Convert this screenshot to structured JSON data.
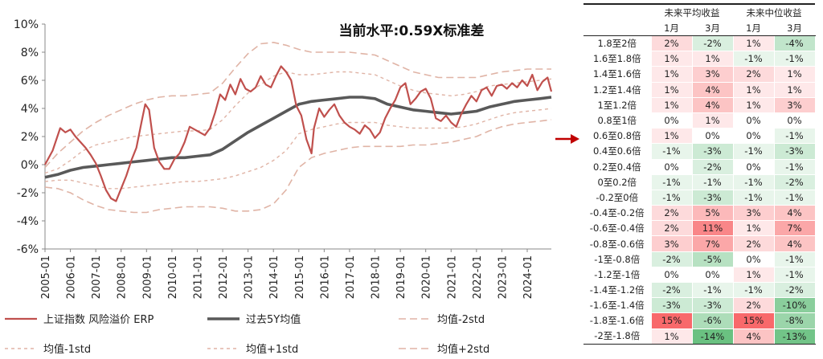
{
  "chart_data": {
    "type": "line",
    "title": "当前水平:0.59X标准差",
    "ylim": [
      -6,
      10
    ],
    "yticks": [
      "10%",
      "8%",
      "6%",
      "4%",
      "2%",
      "0%",
      "-2%",
      "-4%",
      "-6%"
    ],
    "x_range": [
      2005.0,
      2024.95
    ],
    "xticks": [
      "2005-01",
      "2006-01",
      "2007-01",
      "2008-01",
      "2009-01",
      "2010-01",
      "2011-01",
      "2012-01",
      "2013-01",
      "2014-01",
      "2015-01",
      "2016-01",
      "2017-01",
      "2018-01",
      "2019-01",
      "2020-01",
      "2021-01",
      "2022-01",
      "2023-01",
      "2024-01"
    ],
    "series": [
      {
        "name": "上证指数 风险溢价 ERP",
        "color": "#c0504d",
        "x": [
          2005.0,
          2005.3,
          2005.6,
          2005.8,
          2006.0,
          2006.2,
          2006.4,
          2006.6,
          2006.8,
          2007.0,
          2007.2,
          2007.4,
          2007.6,
          2007.8,
          2008.0,
          2008.2,
          2008.4,
          2008.6,
          2008.8,
          2008.95,
          2009.1,
          2009.3,
          2009.5,
          2009.7,
          2009.9,
          2010.1,
          2010.3,
          2010.5,
          2010.7,
          2010.9,
          2011.1,
          2011.3,
          2011.5,
          2011.7,
          2011.9,
          2012.1,
          2012.3,
          2012.5,
          2012.7,
          2012.9,
          2013.1,
          2013.3,
          2013.5,
          2013.7,
          2013.9,
          2014.1,
          2014.3,
          2014.5,
          2014.7,
          2014.9,
          2015.1,
          2015.3,
          2015.5,
          2015.6,
          2015.8,
          2016.0,
          2016.2,
          2016.4,
          2016.6,
          2016.8,
          2017.0,
          2017.2,
          2017.4,
          2017.6,
          2017.8,
          2018.0,
          2018.2,
          2018.4,
          2018.6,
          2018.8,
          2019.0,
          2019.2,
          2019.4,
          2019.6,
          2019.8,
          2020.0,
          2020.2,
          2020.4,
          2020.6,
          2020.8,
          2021.0,
          2021.2,
          2021.4,
          2021.6,
          2021.8,
          2022.0,
          2022.2,
          2022.4,
          2022.6,
          2022.8,
          2023.0,
          2023.2,
          2023.4,
          2023.6,
          2023.8,
          2024.0,
          2024.2,
          2024.4,
          2024.6,
          2024.8,
          2024.95
        ],
        "values": [
          0.0,
          1.0,
          2.6,
          2.3,
          2.5,
          2.0,
          1.6,
          1.2,
          0.7,
          0.1,
          -0.8,
          -1.8,
          -2.4,
          -2.6,
          -1.7,
          -0.8,
          0.3,
          1.2,
          3.0,
          4.3,
          3.9,
          1.2,
          0.2,
          -0.3,
          -0.3,
          0.4,
          0.8,
          1.6,
          2.7,
          2.5,
          2.3,
          2.1,
          2.6,
          3.7,
          5.0,
          4.6,
          5.7,
          5.0,
          6.1,
          5.4,
          5.2,
          5.5,
          6.3,
          5.7,
          5.5,
          6.3,
          7.0,
          6.6,
          6.0,
          4.2,
          3.5,
          1.8,
          0.8,
          2.6,
          4.0,
          3.4,
          3.9,
          4.3,
          3.5,
          3.0,
          2.7,
          2.5,
          2.2,
          2.8,
          2.5,
          1.9,
          2.3,
          3.3,
          4.0,
          4.6,
          5.5,
          5.8,
          4.3,
          4.7,
          5.2,
          5.4,
          4.7,
          3.3,
          3.1,
          3.5,
          3.0,
          2.7,
          3.6,
          4.3,
          4.9,
          4.5,
          5.3,
          5.5,
          4.9,
          5.6,
          5.7,
          5.4,
          5.8,
          5.5,
          6.0,
          5.6,
          6.4,
          5.3,
          5.9,
          6.2,
          5.2
        ]
      },
      {
        "name": "过去5Y均值",
        "color": "#595959",
        "x": [
          2005.0,
          2005.5,
          2006.0,
          2006.5,
          2007.0,
          2007.5,
          2008.0,
          2008.5,
          2009.0,
          2009.5,
          2010.0,
          2010.5,
          2011.0,
          2011.5,
          2012.0,
          2012.5,
          2013.0,
          2013.5,
          2014.0,
          2014.5,
          2015.0,
          2015.5,
          2016.0,
          2016.5,
          2017.0,
          2017.5,
          2018.0,
          2018.5,
          2019.0,
          2019.5,
          2020.0,
          2020.5,
          2021.0,
          2021.5,
          2022.0,
          2022.5,
          2023.0,
          2023.5,
          2024.0,
          2024.5,
          2024.95
        ],
        "values": [
          -0.9,
          -0.7,
          -0.4,
          -0.2,
          -0.1,
          0.0,
          0.1,
          0.2,
          0.3,
          0.4,
          0.5,
          0.5,
          0.6,
          0.7,
          1.1,
          1.7,
          2.3,
          2.8,
          3.3,
          3.8,
          4.3,
          4.5,
          4.6,
          4.7,
          4.8,
          4.8,
          4.7,
          4.3,
          4.1,
          3.9,
          3.8,
          3.7,
          3.6,
          3.7,
          3.8,
          4.1,
          4.3,
          4.5,
          4.6,
          4.7,
          4.8
        ]
      },
      {
        "name": "均值-2std",
        "color": "#e0b4a6",
        "dash": "long",
        "x": [
          2005.0,
          2005.5,
          2006.0,
          2006.5,
          2007.0,
          2007.5,
          2008.0,
          2008.5,
          2009.0,
          2009.5,
          2010.0,
          2010.5,
          2011.0,
          2011.5,
          2012.0,
          2012.5,
          2013.0,
          2013.5,
          2014.0,
          2014.5,
          2015.0,
          2015.5,
          2016.0,
          2016.5,
          2017.0,
          2017.5,
          2018.0,
          2018.5,
          2019.0,
          2019.5,
          2020.0,
          2020.5,
          2021.0,
          2021.5,
          2022.0,
          2022.5,
          2023.0,
          2023.5,
          2024.0,
          2024.5,
          2024.95
        ],
        "values": [
          -1.6,
          -1.7,
          -2.0,
          -2.5,
          -2.9,
          -3.2,
          -3.3,
          -3.4,
          -3.4,
          -3.2,
          -3.1,
          -3.0,
          -3.0,
          -3.0,
          -3.1,
          -3.3,
          -3.3,
          -3.2,
          -2.8,
          -1.8,
          -0.2,
          0.5,
          0.8,
          1.0,
          1.2,
          1.3,
          1.3,
          1.3,
          1.3,
          1.4,
          1.4,
          1.5,
          1.6,
          1.8,
          2.0,
          2.4,
          2.7,
          2.9,
          3.0,
          3.1,
          3.2
        ]
      },
      {
        "name": "均值-1std",
        "color": "#e0b4a6",
        "dash": "short",
        "x": [
          2005.0,
          2005.5,
          2006.0,
          2006.5,
          2007.0,
          2007.5,
          2008.0,
          2008.5,
          2009.0,
          2009.5,
          2010.0,
          2010.5,
          2011.0,
          2011.5,
          2012.0,
          2012.5,
          2013.0,
          2013.5,
          2014.0,
          2014.5,
          2015.0,
          2015.5,
          2016.0,
          2016.5,
          2017.0,
          2017.5,
          2018.0,
          2018.5,
          2019.0,
          2019.5,
          2020.0,
          2020.5,
          2021.0,
          2021.5,
          2022.0,
          2022.5,
          2023.0,
          2023.5,
          2024.0,
          2024.5,
          2024.95
        ],
        "values": [
          -1.2,
          -1.1,
          -1.1,
          -1.3,
          -1.5,
          -1.7,
          -1.7,
          -1.6,
          -1.5,
          -1.4,
          -1.3,
          -1.2,
          -1.2,
          -1.1,
          -1.0,
          -0.8,
          -0.5,
          -0.2,
          0.3,
          1.0,
          2.2,
          2.5,
          2.7,
          2.9,
          3.0,
          3.0,
          3.0,
          2.8,
          2.7,
          2.6,
          2.6,
          2.6,
          2.6,
          2.7,
          2.9,
          3.2,
          3.5,
          3.7,
          3.8,
          3.9,
          4.0
        ]
      },
      {
        "name": "均值+1std",
        "color": "#e0b4a6",
        "dash": "short",
        "x": [
          2005.0,
          2005.5,
          2006.0,
          2006.5,
          2007.0,
          2007.5,
          2008.0,
          2008.5,
          2009.0,
          2009.5,
          2010.0,
          2010.5,
          2011.0,
          2011.5,
          2012.0,
          2012.5,
          2013.0,
          2013.5,
          2014.0,
          2014.5,
          2015.0,
          2015.5,
          2016.0,
          2016.5,
          2017.0,
          2017.5,
          2018.0,
          2018.5,
          2019.0,
          2019.5,
          2020.0,
          2020.5,
          2021.0,
          2021.5,
          2022.0,
          2022.5,
          2023.0,
          2023.5,
          2024.0,
          2024.5,
          2024.95
        ],
        "values": [
          -0.6,
          -0.3,
          0.3,
          1.0,
          1.4,
          1.6,
          1.8,
          2.0,
          2.1,
          2.2,
          2.3,
          2.4,
          2.4,
          2.5,
          3.2,
          4.2,
          5.1,
          5.7,
          6.3,
          6.6,
          6.4,
          6.4,
          6.5,
          6.6,
          6.6,
          6.5,
          6.4,
          6.0,
          5.6,
          5.3,
          5.1,
          5.0,
          4.9,
          5.0,
          5.2,
          5.6,
          5.7,
          5.8,
          5.9,
          6.0,
          6.1
        ]
      },
      {
        "name": "均值+2std",
        "color": "#e0b4a6",
        "dash": "long",
        "x": [
          2005.0,
          2005.5,
          2006.0,
          2006.5,
          2007.0,
          2007.5,
          2008.0,
          2008.5,
          2009.0,
          2009.5,
          2010.0,
          2010.5,
          2011.0,
          2011.5,
          2012.0,
          2012.5,
          2013.0,
          2013.5,
          2014.0,
          2014.5,
          2015.0,
          2015.5,
          2016.0,
          2016.5,
          2017.0,
          2017.5,
          2018.0,
          2018.5,
          2019.0,
          2019.5,
          2020.0,
          2020.5,
          2021.0,
          2021.5,
          2022.0,
          2022.5,
          2023.0,
          2023.5,
          2024.0,
          2024.5,
          2024.95
        ],
        "values": [
          -0.2,
          0.8,
          1.6,
          2.4,
          3.0,
          3.5,
          3.9,
          4.3,
          4.6,
          4.8,
          4.9,
          4.9,
          5.0,
          5.1,
          5.8,
          6.9,
          7.9,
          8.6,
          8.7,
          8.5,
          8.2,
          8.0,
          8.0,
          8.0,
          8.0,
          7.9,
          7.8,
          7.4,
          7.0,
          6.6,
          6.4,
          6.2,
          6.2,
          6.2,
          6.2,
          6.4,
          6.6,
          6.7,
          6.8,
          6.8,
          6.8
        ]
      }
    ]
  },
  "table": {
    "group_headers": [
      "未来平均收益",
      "未来中位收益"
    ],
    "sub_headers": [
      "1月",
      "3月",
      "1月",
      "3月"
    ],
    "rows": [
      {
        "label": "1.8至2倍",
        "values": [
          "2%",
          "-2%",
          "1%",
          "-4%"
        ],
        "nums": [
          2,
          -2,
          1,
          -4
        ]
      },
      {
        "label": "1.6至1.8倍",
        "values": [
          "1%",
          "1%",
          "-1%",
          "-1%"
        ],
        "nums": [
          1,
          1,
          -1,
          -1
        ]
      },
      {
        "label": "1.4至1.6倍",
        "values": [
          "1%",
          "3%",
          "2%",
          "1%"
        ],
        "nums": [
          1,
          3,
          2,
          1
        ]
      },
      {
        "label": "1.2至1.4倍",
        "values": [
          "1%",
          "4%",
          "1%",
          "1%"
        ],
        "nums": [
          1,
          4,
          1,
          1
        ]
      },
      {
        "label": "1至1.2倍",
        "values": [
          "1%",
          "4%",
          "1%",
          "3%"
        ],
        "nums": [
          1,
          4,
          1,
          3
        ]
      },
      {
        "label": "0.8至1倍",
        "values": [
          "0%",
          "1%",
          "0%",
          "0%"
        ],
        "nums": [
          0,
          1,
          0,
          0
        ]
      },
      {
        "label": "0.6至0.8倍",
        "values": [
          "1%",
          "0%",
          "0%",
          "-1%"
        ],
        "nums": [
          1,
          0,
          0,
          -1
        ]
      },
      {
        "label": "0.4至0.6倍",
        "values": [
          "-1%",
          "-3%",
          "-1%",
          "-3%"
        ],
        "nums": [
          -1,
          -3,
          -1,
          -3
        ]
      },
      {
        "label": "0.2至0.4倍",
        "values": [
          "0%",
          "-2%",
          "0%",
          "-1%"
        ],
        "nums": [
          0,
          -2,
          0,
          -1
        ]
      },
      {
        "label": "0至0.2倍",
        "values": [
          "-1%",
          "-1%",
          "-1%",
          "-2%"
        ],
        "nums": [
          -1,
          -1,
          -1,
          -2
        ]
      },
      {
        "label": "-0.2至0倍",
        "values": [
          "-1%",
          "-3%",
          "-1%",
          "-1%"
        ],
        "nums": [
          -1,
          -3,
          -1,
          -1
        ]
      },
      {
        "label": "-0.4至-0.2倍",
        "values": [
          "2%",
          "5%",
          "3%",
          "4%"
        ],
        "nums": [
          2,
          5,
          3,
          4
        ]
      },
      {
        "label": "-0.6至-0.4倍",
        "values": [
          "2%",
          "11%",
          "1%",
          "7%"
        ],
        "nums": [
          2,
          11,
          1,
          7
        ]
      },
      {
        "label": "-0.8至-0.6倍",
        "values": [
          "3%",
          "7%",
          "2%",
          "4%"
        ],
        "nums": [
          3,
          7,
          2,
          4
        ]
      },
      {
        "label": "-1至-0.8倍",
        "values": [
          "-2%",
          "-5%",
          "0%",
          "-1%"
        ],
        "nums": [
          -2,
          -5,
          0,
          -1
        ]
      },
      {
        "label": "-1.2至-1倍",
        "values": [
          "0%",
          "0%",
          "1%",
          "-1%"
        ],
        "nums": [
          0,
          0,
          1,
          -1
        ]
      },
      {
        "label": "-1.4至-1.2倍",
        "values": [
          "-2%",
          "-1%",
          "-1%",
          "-2%"
        ],
        "nums": [
          -2,
          -1,
          -1,
          -2
        ]
      },
      {
        "label": "-1.6至-1.4倍",
        "values": [
          "-3%",
          "-3%",
          "2%",
          "-10%"
        ],
        "nums": [
          -3,
          -3,
          2,
          -10
        ]
      },
      {
        "label": "-1.8至-1.6倍",
        "values": [
          "15%",
          "-6%",
          "15%",
          "-8%"
        ],
        "nums": [
          15,
          -6,
          15,
          -8
        ]
      },
      {
        "label": "-2至-1.8倍",
        "values": [
          "1%",
          "-14%",
          "4%",
          "-13%"
        ],
        "nums": [
          1,
          -14,
          4,
          -13
        ]
      }
    ],
    "highlight_row_index": 7,
    "colors": {
      "positive": "#f8696b",
      "negative": "#63be7b",
      "neutral": "#ffffff"
    }
  },
  "arrow_color": "#c00000"
}
